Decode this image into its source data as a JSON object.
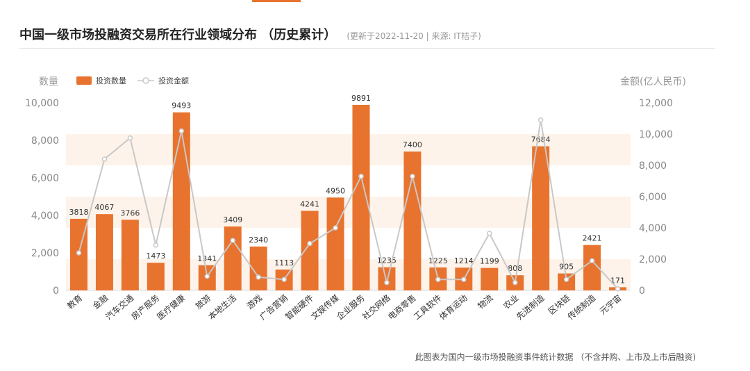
{
  "header": {
    "title": "中国一级市场投融资交易所在行业领域分布 （历史累计）",
    "subtitle": "(更新于2022-11-20 | 来源: IT桔子)"
  },
  "footnote": "此图表为国内一级市场投融资事件统计数据 （不含并购、上市及上市后融资)",
  "colors": {
    "bar": "#e8732e",
    "line": "#c8c8c8",
    "band": "#fdf3ea",
    "accent": "#e8732e"
  },
  "chart_data": {
    "type": "bar",
    "categories": [
      "教育",
      "金融",
      "汽车交通",
      "房产服务",
      "医疗健康",
      "旅游",
      "本地生活",
      "游戏",
      "广告营销",
      "智能硬件",
      "文娱传媒",
      "企业服务",
      "社交网络",
      "电商零售",
      "工具软件",
      "体育运动",
      "物流",
      "农业",
      "先进制造",
      "区块链",
      "传统制造",
      "元宇宙"
    ],
    "series": [
      {
        "name": "投资数量",
        "type": "bar",
        "axis": "left",
        "values": [
          3818,
          4067,
          3766,
          1473,
          9493,
          1341,
          3409,
          2340,
          1113,
          4241,
          4950,
          9891,
          1235,
          7400,
          1225,
          1214,
          1199,
          808,
          7684,
          905,
          2421,
          171
        ]
      },
      {
        "name": "投资金额",
        "type": "line",
        "axis": "right",
        "values": [
          2400,
          8400,
          9750,
          2900,
          10200,
          900,
          3200,
          850,
          700,
          3000,
          4000,
          7300,
          500,
          7300,
          700,
          700,
          3650,
          500,
          10900,
          700,
          1900,
          100
        ]
      }
    ],
    "ylabel_left": "数量",
    "ylabel_right": "金额(亿人民币)",
    "ylim_left": [
      0,
      10000
    ],
    "ylim_right": [
      0,
      12000
    ],
    "yticks_left": [
      "0",
      "2,000",
      "4,000",
      "6,000",
      "8,000",
      "10,000"
    ],
    "yticks_right": [
      "0",
      "2,000",
      "4,000",
      "6,000",
      "8,000",
      "10,000",
      "12,000"
    ],
    "grid": false,
    "legend_position": "top-left"
  }
}
